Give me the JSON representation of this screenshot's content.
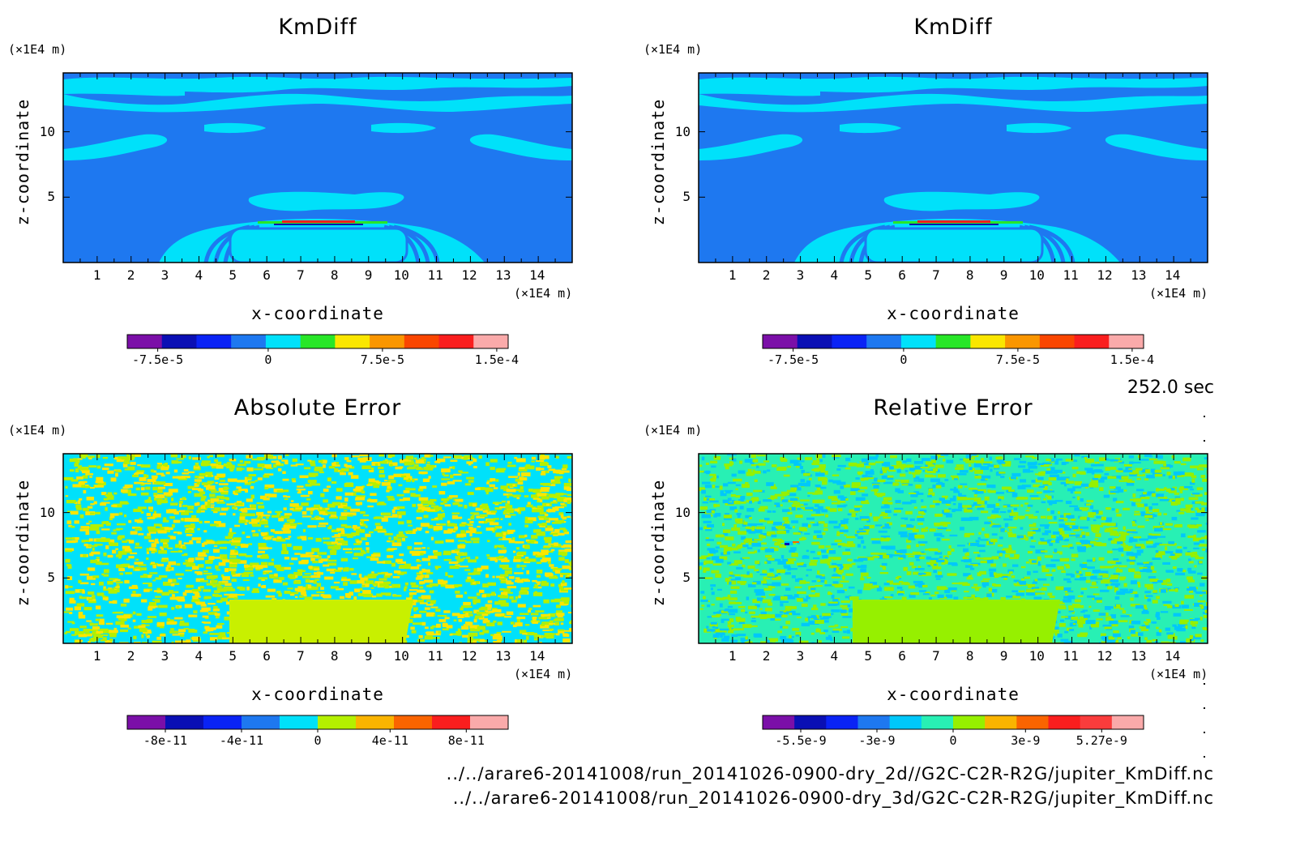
{
  "chart_data": [
    {
      "type": "heatmap",
      "title": "KmDiff",
      "xlabel": "x-coordinate",
      "ylabel": "z-coordinate",
      "x_unit": "(×1E4 m)",
      "y_unit": "(×1E4 m)",
      "x_ticks": [
        "1",
        "2",
        "3",
        "4",
        "5",
        "6",
        "7",
        "8",
        "9",
        "10",
        "11",
        "12",
        "13",
        "14"
      ],
      "y_ticks": [
        "5",
        "10"
      ],
      "xlim": [
        0,
        15
      ],
      "ylim": [
        0,
        14.5
      ],
      "colorbar": {
        "colors": [
          "#7b0fa8",
          "#0a0fb4",
          "#0a23f5",
          "#1e78f0",
          "#00e1fa",
          "#28e628",
          "#fae600",
          "#fa9600",
          "#fa4600",
          "#fa1e1e",
          "#faaaaa"
        ],
        "tick_labels": [
          "-7.5e-5",
          "0",
          "7.5e-5",
          "1.5e-4"
        ]
      }
    },
    {
      "type": "heatmap",
      "title": "KmDiff",
      "xlabel": "x-coordinate",
      "ylabel": "z-coordinate",
      "x_unit": "(×1E4 m)",
      "y_unit": "(×1E4 m)",
      "x_ticks": [
        "1",
        "2",
        "3",
        "4",
        "5",
        "6",
        "7",
        "8",
        "9",
        "10",
        "11",
        "12",
        "13",
        "14"
      ],
      "y_ticks": [
        "5",
        "10"
      ],
      "xlim": [
        0,
        15
      ],
      "ylim": [
        0,
        14.5
      ],
      "colorbar": {
        "colors": [
          "#7b0fa8",
          "#0a0fb4",
          "#0a23f5",
          "#1e78f0",
          "#00e1fa",
          "#28e628",
          "#fae600",
          "#fa9600",
          "#fa4600",
          "#fa1e1e",
          "#faaaaa"
        ],
        "tick_labels": [
          "-7.5e-5",
          "0",
          "7.5e-5",
          "1.5e-4"
        ]
      }
    },
    {
      "type": "heatmap",
      "title": "Absolute Error",
      "xlabel": "x-coordinate",
      "ylabel": "z-coordinate",
      "x_unit": "(×1E4 m)",
      "y_unit": "(×1E4 m)",
      "x_ticks": [
        "1",
        "2",
        "3",
        "4",
        "5",
        "6",
        "7",
        "8",
        "9",
        "10",
        "11",
        "12",
        "13",
        "14"
      ],
      "y_ticks": [
        "5",
        "10"
      ],
      "xlim": [
        0,
        15
      ],
      "ylim": [
        0,
        14.5
      ],
      "colorbar": {
        "colors": [
          "#7b0fa8",
          "#0a0fb4",
          "#0a23f5",
          "#1e78f0",
          "#00e1fa",
          "#b4f000",
          "#fab400",
          "#fa6400",
          "#fa1e1e",
          "#faaaaa"
        ],
        "tick_labels": [
          "-8e-11",
          "-4e-11",
          "0",
          "4e-11",
          "8e-11"
        ]
      }
    },
    {
      "type": "heatmap",
      "title": "Relative Error",
      "xlabel": "x-coordinate",
      "ylabel": "z-coordinate",
      "x_unit": "(×1E4 m)",
      "y_unit": "(×1E4 m)",
      "x_ticks": [
        "1",
        "2",
        "3",
        "4",
        "5",
        "6",
        "7",
        "8",
        "9",
        "10",
        "11",
        "12",
        "13",
        "14"
      ],
      "y_ticks": [
        "5",
        "10"
      ],
      "xlim": [
        0,
        15
      ],
      "ylim": [
        0,
        14.5
      ],
      "colorbar": {
        "colors": [
          "#7b0fa8",
          "#0a0fb4",
          "#0a23f5",
          "#1e78f0",
          "#00c8fa",
          "#28f0b4",
          "#96f000",
          "#fab400",
          "#fa6400",
          "#fa1e1e",
          "#fa3c3c",
          "#faaaaa"
        ],
        "tick_labels": [
          "-5.5e-9",
          "-3e-9",
          "0",
          "3e-9",
          "5.27e-9"
        ]
      }
    }
  ],
  "timestamp": "252.0 sec",
  "footer": [
    "../../arare6-20141008/run_20141026-0900-dry_2d//G2C-C2R-R2G/jupiter_KmDiff.nc",
    "../../arare6-20141008/run_20141026-0900-dry_3d/G2C-C2R-R2G/jupiter_KmDiff.nc"
  ]
}
